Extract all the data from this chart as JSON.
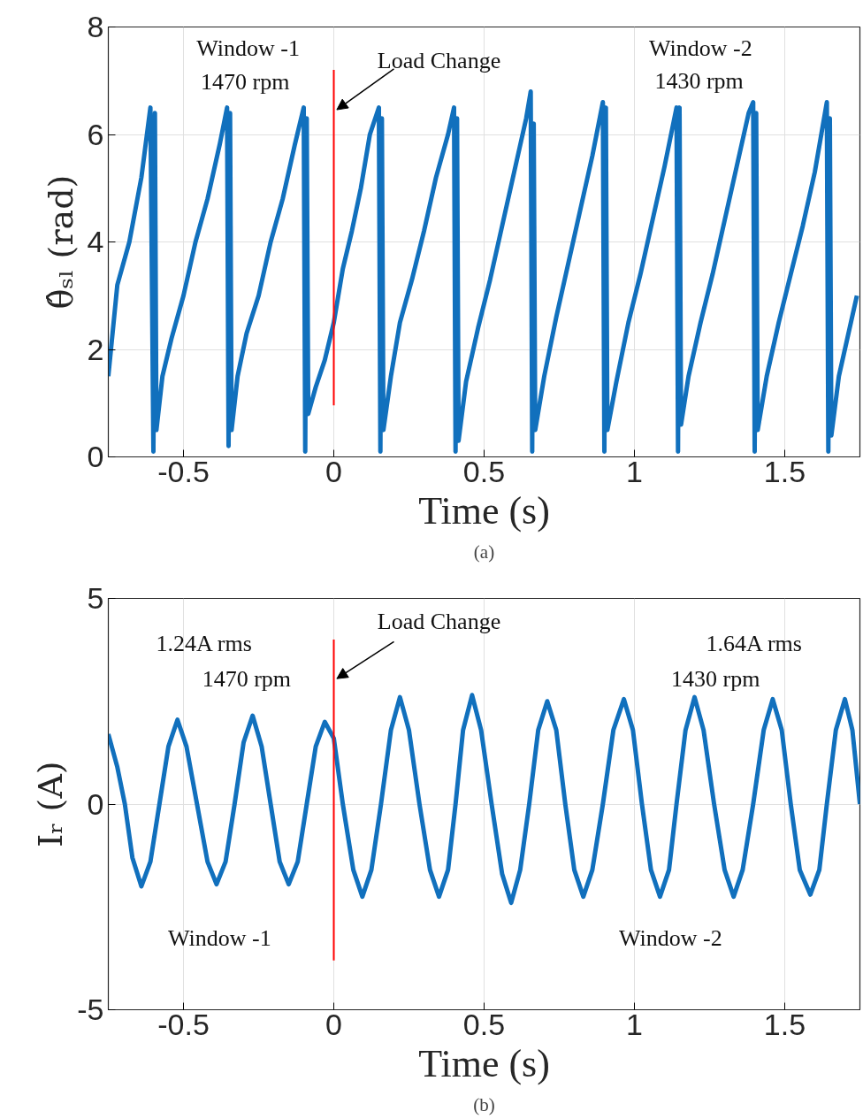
{
  "chart_data": [
    {
      "type": "line",
      "xlabel": "Time (s)",
      "ylabel": "θ̂ₛₗ (rad)",
      "xlim": [
        -0.75,
        1.75
      ],
      "ylim": [
        0,
        8
      ],
      "xticks": [
        -0.5,
        0,
        0.5,
        1,
        1.5
      ],
      "yticks": [
        0,
        2,
        4,
        6,
        8
      ],
      "grid": true,
      "line_style": "solid",
      "x": [
        -0.75,
        -0.72,
        -0.68,
        -0.64,
        -0.61,
        -0.6,
        -0.595,
        -0.59,
        -0.57,
        -0.54,
        -0.5,
        -0.46,
        -0.42,
        -0.38,
        -0.355,
        -0.35,
        -0.345,
        -0.34,
        -0.32,
        -0.29,
        -0.25,
        -0.21,
        -0.17,
        -0.13,
        -0.1,
        -0.095,
        -0.09,
        -0.085,
        -0.06,
        -0.03,
        0.0,
        0.03,
        0.06,
        0.09,
        0.12,
        0.15,
        0.155,
        0.16,
        0.165,
        0.19,
        0.22,
        0.26,
        0.3,
        0.34,
        0.38,
        0.4,
        0.405,
        0.41,
        0.415,
        0.44,
        0.48,
        0.52,
        0.56,
        0.6,
        0.64,
        0.655,
        0.66,
        0.665,
        0.67,
        0.7,
        0.74,
        0.78,
        0.82,
        0.86,
        0.895,
        0.9,
        0.905,
        0.91,
        0.94,
        0.98,
        1.02,
        1.06,
        1.1,
        1.14,
        1.145,
        1.15,
        1.155,
        1.18,
        1.22,
        1.26,
        1.3,
        1.34,
        1.38,
        1.395,
        1.4,
        1.405,
        1.41,
        1.44,
        1.48,
        1.52,
        1.56,
        1.6,
        1.64,
        1.645,
        1.65,
        1.655,
        1.68,
        1.72,
        1.74
      ],
      "series": [
        {
          "color": "#1170bd",
          "values": [
            1.5,
            3.2,
            4.0,
            5.2,
            6.5,
            0.1,
            6.4,
            0.5,
            1.5,
            2.2,
            3.0,
            4.0,
            4.8,
            5.8,
            6.5,
            0.2,
            6.4,
            0.5,
            1.5,
            2.3,
            3.0,
            4.0,
            4.8,
            5.8,
            6.5,
            0.1,
            6.3,
            0.8,
            1.3,
            1.8,
            2.5,
            3.5,
            4.2,
            5.0,
            6.0,
            6.5,
            0.1,
            6.3,
            0.5,
            1.5,
            2.5,
            3.3,
            4.2,
            5.2,
            6.0,
            6.5,
            0.1,
            6.3,
            0.3,
            1.4,
            2.4,
            3.3,
            4.3,
            5.3,
            6.3,
            6.8,
            0.1,
            6.2,
            0.5,
            1.5,
            2.6,
            3.6,
            4.6,
            5.6,
            6.6,
            0.1,
            6.5,
            0.5,
            1.4,
            2.5,
            3.4,
            4.4,
            5.4,
            6.5,
            0.1,
            6.5,
            0.6,
            1.5,
            2.5,
            3.4,
            4.4,
            5.4,
            6.4,
            6.6,
            0.1,
            6.4,
            0.5,
            1.5,
            2.5,
            3.4,
            4.3,
            5.3,
            6.6,
            0.1,
            6.3,
            0.4,
            1.5,
            2.5,
            3.0
          ]
        }
      ],
      "ref_lines": [
        {
          "axis": "x",
          "value": 0,
          "color": "#ff0000"
        }
      ],
      "annotations": [
        "Window -1",
        "1470 rpm",
        {
          "text": "Load Change",
          "x": 0,
          "y": 6.46
        },
        "Window -2",
        "1430 rpm",
        "(a)"
      ]
    },
    {
      "type": "line",
      "xlabel": "Time (s)",
      "ylabel": "Iᵣ (A)",
      "xlim": [
        -0.75,
        1.75
      ],
      "ylim": [
        -5,
        5
      ],
      "xticks": [
        -0.5,
        0,
        0.5,
        1,
        1.5
      ],
      "yticks": [
        -5,
        0,
        5
      ],
      "grid": true,
      "line_style": "solid",
      "x": [
        -0.75,
        -0.72,
        -0.695,
        -0.67,
        -0.64,
        -0.61,
        -0.58,
        -0.55,
        -0.52,
        -0.49,
        -0.455,
        -0.42,
        -0.39,
        -0.36,
        -0.33,
        -0.3,
        -0.27,
        -0.24,
        -0.21,
        -0.18,
        -0.15,
        -0.12,
        -0.09,
        -0.06,
        -0.03,
        0.0,
        0.03,
        0.065,
        0.095,
        0.125,
        0.157,
        0.19,
        0.22,
        0.25,
        0.285,
        0.32,
        0.35,
        0.38,
        0.405,
        0.43,
        0.46,
        0.49,
        0.525,
        0.56,
        0.59,
        0.62,
        0.65,
        0.68,
        0.71,
        0.74,
        0.77,
        0.8,
        0.83,
        0.86,
        0.895,
        0.93,
        0.965,
        0.995,
        1.025,
        1.055,
        1.085,
        1.115,
        1.14,
        1.17,
        1.2,
        1.23,
        1.265,
        1.3,
        1.33,
        1.36,
        1.395,
        1.43,
        1.46,
        1.49,
        1.52,
        1.55,
        1.585,
        1.615,
        1.64,
        1.67,
        1.7,
        1.725,
        1.75
      ],
      "series": [
        {
          "color": "#1170bd",
          "values": [
            1.7,
            0.9,
            0,
            -1.3,
            -2.0,
            -1.4,
            0,
            1.4,
            2.05,
            1.4,
            0,
            -1.4,
            -1.95,
            -1.4,
            0,
            1.5,
            2.15,
            1.4,
            0,
            -1.4,
            -1.95,
            -1.4,
            0,
            1.4,
            2.0,
            1.6,
            0,
            -1.6,
            -2.25,
            -1.6,
            0,
            1.8,
            2.6,
            1.8,
            0,
            -1.6,
            -2.25,
            -1.6,
            0,
            1.8,
            2.65,
            1.8,
            0,
            -1.7,
            -2.4,
            -1.6,
            0,
            1.8,
            2.5,
            1.8,
            0,
            -1.6,
            -2.25,
            -1.6,
            0,
            1.8,
            2.55,
            1.8,
            0,
            -1.6,
            -2.25,
            -1.6,
            0,
            1.8,
            2.6,
            1.8,
            0,
            -1.6,
            -2.25,
            -1.6,
            0,
            1.8,
            2.55,
            1.8,
            0,
            -1.6,
            -2.2,
            -1.6,
            0,
            1.8,
            2.55,
            1.8,
            0
          ]
        }
      ],
      "ref_lines": [
        {
          "axis": "x",
          "value": 0,
          "color": "#ff0000"
        }
      ],
      "annotations": [
        "1.24A rms",
        "1470 rpm",
        {
          "text": "Load Change",
          "x": 0,
          "y": 3.05
        },
        "Window -1",
        "1.64A rms",
        "1430 rpm",
        "Window -2",
        "(b)"
      ]
    }
  ]
}
